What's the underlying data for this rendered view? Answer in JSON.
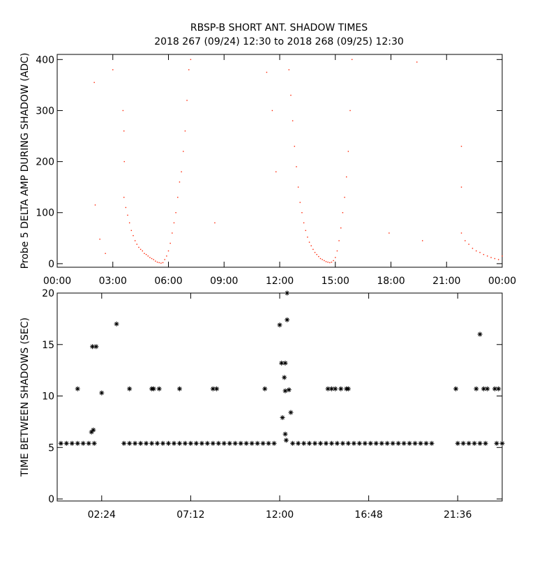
{
  "chart_data": [
    {
      "type": "scatter",
      "title": "RBSP-B SHORT ANT. SHADOW TIMES",
      "subtitle": "2018 267 (09/24) 12:30 to 2018 268 (09/25) 12:30",
      "y_label": "Probe 5 DELTA AMP DURING SHADOW (ADC)",
      "color": "#ff2000",
      "marker": "dot",
      "xlim": [
        0,
        24
      ],
      "ylim": [
        -7,
        410
      ],
      "xticks": [
        {
          "value": 0,
          "label": "00:00"
        },
        {
          "value": 3,
          "label": "03:00"
        },
        {
          "value": 6,
          "label": "06:00"
        },
        {
          "value": 9,
          "label": "09:00"
        },
        {
          "value": 12,
          "label": "12:00"
        },
        {
          "value": 15,
          "label": "15:00"
        },
        {
          "value": 18,
          "label": "18:00"
        },
        {
          "value": 21,
          "label": "21:00"
        },
        {
          "value": 24,
          "label": "00:00"
        }
      ],
      "yticks": [
        0,
        100,
        200,
        300,
        400
      ],
      "x": [
        3.6,
        3.7,
        3.8,
        3.9,
        4.0,
        4.1,
        4.2,
        4.3,
        4.4,
        4.5,
        4.6,
        4.7,
        4.8,
        4.9,
        5.0,
        5.1,
        5.2,
        5.3,
        5.4,
        5.5,
        5.6,
        3.55,
        3.6,
        3.62,
        5.7,
        5.8,
        5.9,
        6.0,
        6.1,
        6.2,
        6.3,
        6.4,
        6.5,
        6.6,
        6.7,
        6.8,
        6.9,
        7.0,
        7.1,
        7.2,
        12.5,
        12.6,
        12.7,
        12.8,
        12.9,
        13.0,
        13.1,
        13.2,
        13.3,
        13.4,
        13.5,
        13.6,
        13.7,
        13.8,
        13.9,
        14.0,
        14.1,
        14.2,
        14.3,
        14.4,
        14.5,
        14.6,
        14.7,
        14.8,
        14.9,
        15.0,
        15.1,
        15.2,
        15.3,
        15.4,
        15.5,
        15.6,
        15.7,
        15.8,
        15.9,
        21.8,
        22.0,
        22.2,
        22.4,
        22.6,
        22.8,
        23.0,
        23.2,
        23.4,
        23.6,
        23.8,
        24.0,
        21.8,
        21.8,
        2.0,
        2.05,
        2.3,
        2.6,
        3.0,
        8.5,
        11.6,
        11.3,
        17.9,
        19.4,
        19.7,
        11.8
      ],
      "values": [
        130,
        110,
        95,
        80,
        65,
        55,
        45,
        38,
        32,
        28,
        25,
        20,
        18,
        15,
        12,
        10,
        8,
        5,
        3,
        2,
        1,
        300,
        260,
        200,
        2,
        8,
        15,
        25,
        40,
        60,
        80,
        100,
        130,
        160,
        180,
        220,
        260,
        320,
        380,
        400,
        380,
        330,
        280,
        230,
        190,
        150,
        120,
        100,
        80,
        65,
        52,
        42,
        35,
        28,
        22,
        18,
        14,
        10,
        8,
        6,
        4,
        3,
        2,
        3,
        6,
        12,
        25,
        45,
        70,
        100,
        130,
        170,
        220,
        300,
        400,
        60,
        45,
        38,
        30,
        25,
        22,
        18,
        15,
        12,
        10,
        8,
        15,
        230,
        150,
        355,
        115,
        48,
        20,
        380,
        80,
        300,
        375,
        60,
        395,
        45,
        180
      ]
    },
    {
      "type": "scatter",
      "y_label": "TIME BETWEEN SHADOWS (SEC)",
      "color": "#000000",
      "marker": "asterisk",
      "xlim": [
        0,
        24
      ],
      "ylim": [
        -0.2,
        20
      ],
      "xticks": [
        {
          "value": 2.4,
          "label": "02:24"
        },
        {
          "value": 7.2,
          "label": "07:12"
        },
        {
          "value": 12,
          "label": "12:00"
        },
        {
          "value": 16.8,
          "label": "16:48"
        },
        {
          "value": 21.6,
          "label": "21:36"
        }
      ],
      "yticks": [
        0,
        5,
        10,
        15,
        20
      ],
      "x": [
        0.2,
        0.5,
        0.8,
        1.1,
        1.4,
        1.7,
        2.0,
        3.6,
        3.9,
        4.2,
        4.5,
        4.8,
        5.1,
        5.4,
        5.7,
        6.0,
        6.3,
        6.6,
        6.9,
        7.2,
        7.5,
        7.8,
        8.1,
        8.4,
        8.7,
        9.0,
        9.3,
        9.6,
        9.9,
        10.2,
        10.5,
        10.8,
        11.1,
        11.4,
        11.7,
        12.7,
        13.0,
        13.3,
        13.6,
        13.9,
        14.2,
        14.5,
        14.8,
        15.1,
        15.4,
        15.7,
        16.0,
        16.3,
        16.6,
        16.9,
        17.2,
        17.5,
        17.8,
        18.1,
        18.4,
        18.7,
        19.0,
        19.3,
        19.6,
        19.9,
        20.2,
        21.6,
        21.9,
        22.2,
        22.5,
        22.8,
        23.1,
        23.7,
        24.0,
        1.1,
        1.9,
        2.1,
        1.85,
        1.95,
        2.4,
        3.2,
        3.9,
        5.1,
        5.2,
        5.5,
        6.6,
        8.4,
        8.6,
        11.2,
        12.0,
        12.1,
        12.15,
        12.3,
        12.25,
        12.3,
        12.3,
        12.35,
        12.4,
        12.4,
        12.5,
        12.6,
        14.6,
        14.8,
        15.0,
        15.3,
        15.6,
        15.7,
        21.5,
        22.6,
        22.8,
        23.0,
        23.2,
        23.6,
        23.8
      ],
      "values": [
        5.4,
        5.4,
        5.4,
        5.4,
        5.4,
        5.4,
        5.4,
        5.4,
        5.4,
        5.4,
        5.4,
        5.4,
        5.4,
        5.4,
        5.4,
        5.4,
        5.4,
        5.4,
        5.4,
        5.4,
        5.4,
        5.4,
        5.4,
        5.4,
        5.4,
        5.4,
        5.4,
        5.4,
        5.4,
        5.4,
        5.4,
        5.4,
        5.4,
        5.4,
        5.4,
        5.4,
        5.4,
        5.4,
        5.4,
        5.4,
        5.4,
        5.4,
        5.4,
        5.4,
        5.4,
        5.4,
        5.4,
        5.4,
        5.4,
        5.4,
        5.4,
        5.4,
        5.4,
        5.4,
        5.4,
        5.4,
        5.4,
        5.4,
        5.4,
        5.4,
        5.4,
        5.4,
        5.4,
        5.4,
        5.4,
        5.4,
        5.4,
        5.4,
        5.4,
        10.7,
        14.8,
        14.8,
        6.5,
        6.7,
        10.3,
        17,
        10.7,
        10.7,
        10.7,
        10.7,
        10.7,
        10.7,
        10.7,
        10.7,
        16.9,
        13.2,
        7.9,
        13.2,
        11.8,
        10.5,
        6.3,
        5.7,
        20,
        17.4,
        10.6,
        8.4,
        10.7,
        10.7,
        10.7,
        10.7,
        10.7,
        10.7,
        10.7,
        10.7,
        16,
        10.7,
        10.7,
        10.7,
        10.7
      ]
    }
  ]
}
